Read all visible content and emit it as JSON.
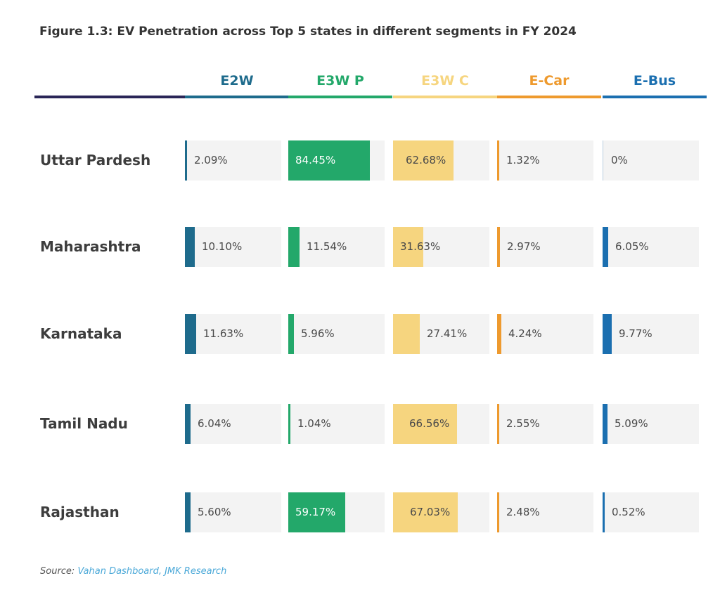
{
  "title": "Figure 1.3: EV Penetration across Top 5 states in different segments in FY 2024",
  "source_label": "Source:",
  "source_text": "Vahan Dashboard, JMK Research",
  "chart_data": {
    "type": "bar",
    "title": "Figure 1.3: EV Penetration across Top 5 states in different segments in FY 2024",
    "xlim": [
      0,
      100
    ],
    "categories": [
      "Uttar Pardesh",
      "Maharashtra",
      "Karnataka",
      "Tamil Nadu",
      "Rajasthan"
    ],
    "series": [
      {
        "name": "E2W",
        "color": "#1e6b8c",
        "values": [
          2.09,
          10.1,
          11.63,
          6.04,
          5.6
        ],
        "labels": [
          "2.09%",
          "10.10%",
          "11.63%",
          "6.04%",
          "5.60%"
        ]
      },
      {
        "name": "E3W P",
        "color": "#23a86a",
        "values": [
          84.45,
          11.54,
          5.96,
          1.04,
          59.17
        ],
        "labels": [
          "84.45%",
          "11.54%",
          "5.96%",
          "1.04%",
          "59.17%"
        ]
      },
      {
        "name": "E3W C",
        "color": "#f6d57f",
        "values": [
          62.68,
          31.63,
          27.41,
          66.56,
          67.03
        ],
        "labels": [
          "62.68%",
          "31.63%",
          "27.41%",
          "66.56%",
          "67.03%"
        ]
      },
      {
        "name": "E-Car",
        "color": "#ee9a2e",
        "values": [
          1.32,
          2.97,
          4.24,
          2.55,
          2.48
        ],
        "labels": [
          "1.32%",
          "2.97%",
          "4.24%",
          "2.55%",
          "2.48%"
        ]
      },
      {
        "name": "E-Bus",
        "color": "#1b6fb0",
        "values": [
          0,
          6.05,
          9.77,
          5.09,
          0.52
        ],
        "labels": [
          "0%",
          "6.05%",
          "9.77%",
          "5.09%",
          "0.52%"
        ]
      }
    ]
  }
}
